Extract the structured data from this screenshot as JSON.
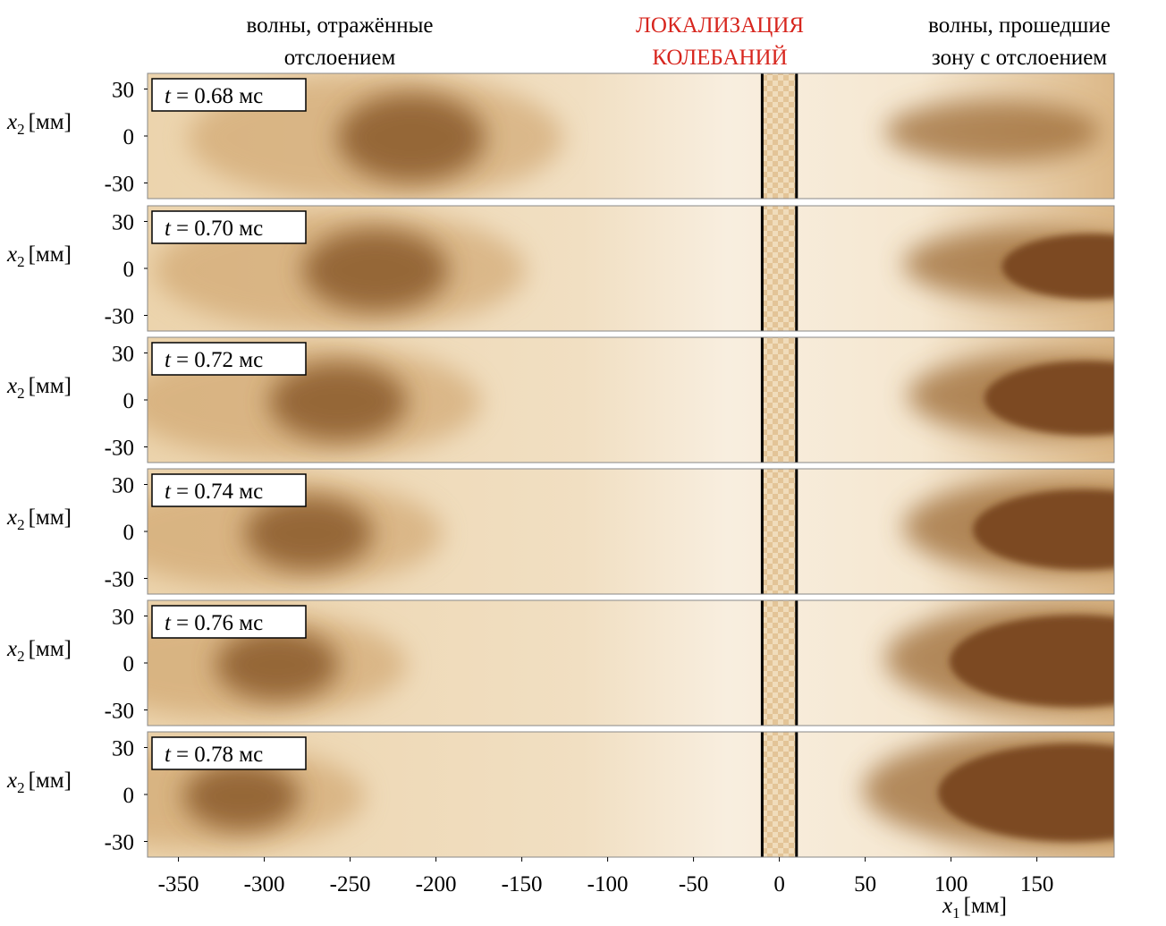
{
  "chart_data": {
    "type": "heatmap",
    "headers": [
      {
        "lines": [
          "волны, отражённые",
          "отслоением"
        ],
        "color": "#000000"
      },
      {
        "lines": [
          "ЛОКАЛИЗАЦИЯ",
          "КОЛЕБАНИЙ"
        ],
        "color": "#d7261e"
      },
      {
        "lines": [
          "волны, прошедшие",
          "зону с отслоением"
        ],
        "color": "#000000"
      }
    ],
    "time_symbol": "t",
    "panels": [
      "= 0.68 мс",
      "= 0.70 мс",
      "= 0.72 мс",
      "= 0.74 мс",
      "= 0.76 мс",
      "= 0.78 мс"
    ],
    "xlabel": {
      "symbol": "x",
      "sub": "1",
      "unit": "[мм]"
    },
    "ylabel": {
      "symbol": "x",
      "sub": "2",
      "unit": "[мм]"
    },
    "xlim": [
      -368,
      195
    ],
    "ylim": [
      -40,
      40
    ],
    "xticks": [
      -350,
      -300,
      -250,
      -200,
      -150,
      -100,
      -50,
      0,
      50,
      100,
      150
    ],
    "yticks": [
      30,
      0,
      -30
    ],
    "vlines": [
      -10,
      10
    ]
  }
}
